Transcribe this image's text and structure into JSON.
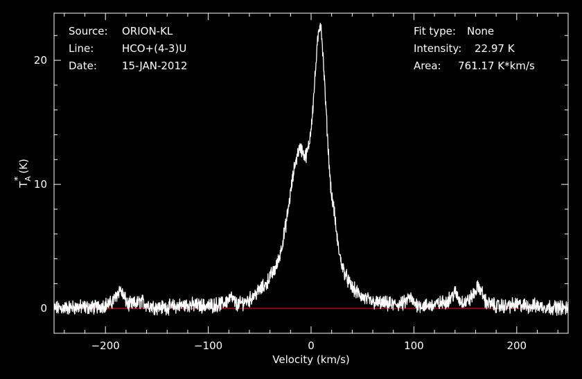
{
  "info_left": [
    {
      "label": "Source:",
      "value": "ORION-KL"
    },
    {
      "label": "Line:",
      "value": "HCO+(4-3)U"
    },
    {
      "label": "Date:",
      "value": "15-JAN-2012"
    }
  ],
  "info_right": [
    {
      "label": "Fit type:",
      "value": "None"
    },
    {
      "label": "Intensity:",
      "value": "22.97 K"
    },
    {
      "label": "Area:",
      "value": "761.17 K*km/s"
    }
  ],
  "colors": {
    "background": "#000000",
    "foreground": "#ffffff",
    "spectrum": "#ffffff",
    "baseline": "#ff0000"
  },
  "chart_data": {
    "type": "line",
    "xlabel": "Velocity (km/s)",
    "ylabel_main": "T",
    "ylabel_sub": "A",
    "ylabel_sup": "*",
    "ylabel_unit": "(K)",
    "xlim": [
      -250,
      250
    ],
    "ylim": [
      -2,
      23.8
    ],
    "x_ticks": [
      -200,
      -100,
      0,
      100,
      200
    ],
    "x_tick_labels": [
      "−200",
      "−100",
      "0",
      "100",
      "200"
    ],
    "y_ticks": [
      0,
      10,
      20
    ],
    "y_tick_labels": [
      "0",
      "10",
      "20"
    ],
    "baseline_value": 0,
    "grid": false,
    "series": [
      {
        "x": [
          -250,
          -230,
          -210,
          -195,
          -190,
          -186,
          -182,
          -178,
          -170,
          -165,
          -160,
          -150,
          -140,
          -120,
          -100,
          -85,
          -78,
          -72,
          -60,
          -50,
          -44,
          -40,
          -36,
          -32,
          -28,
          -24,
          -20,
          -16,
          -12,
          -10,
          -8,
          -6,
          -4,
          -2,
          0,
          2,
          4,
          6,
          8,
          9,
          10,
          12,
          14,
          16,
          18,
          20,
          22,
          24,
          26,
          28,
          30,
          34,
          38,
          42,
          46,
          50,
          55,
          60,
          70,
          80,
          90,
          96,
          100,
          110,
          120,
          130,
          135,
          140,
          145,
          150,
          155,
          160,
          163,
          166,
          170,
          180,
          190,
          200,
          210,
          220,
          230,
          240,
          250
        ],
        "y": [
          0.0,
          0.1,
          0.1,
          0.4,
          0.9,
          1.6,
          0.9,
          0.3,
          0.4,
          0.6,
          0.3,
          0.1,
          0.1,
          0.3,
          0.2,
          0.4,
          0.9,
          0.3,
          0.7,
          1.5,
          1.9,
          2.6,
          3.0,
          3.8,
          5.2,
          7.0,
          9.3,
          11.5,
          12.8,
          12.9,
          12.6,
          12.2,
          12.5,
          13.2,
          14.6,
          16.5,
          18.8,
          21.2,
          22.6,
          22.97,
          22.5,
          19.8,
          16.8,
          13.8,
          11.0,
          9.0,
          8.2,
          6.6,
          5.2,
          4.2,
          3.5,
          2.6,
          1.9,
          1.5,
          1.2,
          0.9,
          0.7,
          0.5,
          0.4,
          0.3,
          0.4,
          0.9,
          0.4,
          0.2,
          0.3,
          0.5,
          0.8,
          1.3,
          0.6,
          0.5,
          0.8,
          1.4,
          1.8,
          1.3,
          0.5,
          0.2,
          0.2,
          0.3,
          0.2,
          0.2,
          0.1,
          0.1,
          0.0
        ]
      }
    ]
  }
}
